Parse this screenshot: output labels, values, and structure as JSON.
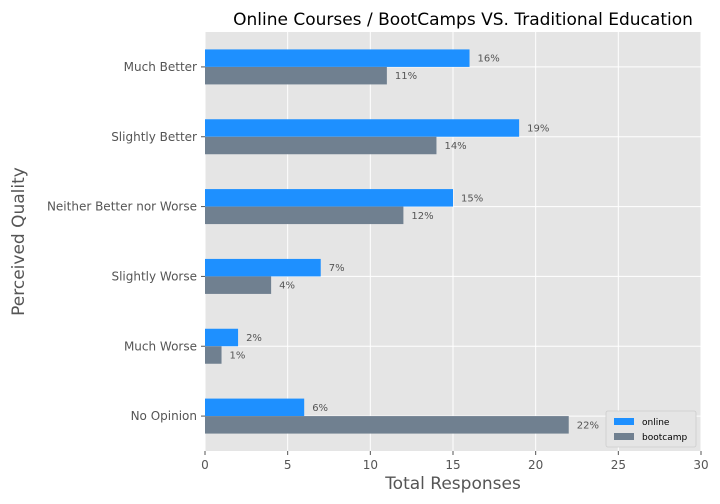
{
  "chart_data": {
    "type": "bar",
    "orientation": "horizontal",
    "title": "Online Courses / BootCamps VS. Traditional Education",
    "xlabel": "Total Responses",
    "ylabel": "Perceived Quality",
    "xlim": [
      0,
      30
    ],
    "xticks": [
      "0",
      "5",
      "10",
      "15",
      "20",
      "25",
      "30"
    ],
    "categories": [
      "Much Better",
      "Slightly Better",
      "Neither Better nor Worse",
      "Slightly Worse",
      "Much Worse",
      "No Opinion"
    ],
    "series": [
      {
        "name": "online",
        "values": [
          16,
          19,
          15,
          7,
          2,
          6
        ],
        "labels": [
          "16%",
          "19%",
          "15%",
          "7%",
          "2%",
          "6%"
        ],
        "color": "#1e90ff"
      },
      {
        "name": "bootcamp",
        "values": [
          11,
          14,
          12,
          4,
          1,
          22
        ],
        "labels": [
          "11%",
          "14%",
          "12%",
          "4%",
          "1%",
          "22%"
        ],
        "color": "#708090"
      }
    ],
    "legend_position": "lower-right",
    "grid": true,
    "background": "#e5e5e5"
  }
}
